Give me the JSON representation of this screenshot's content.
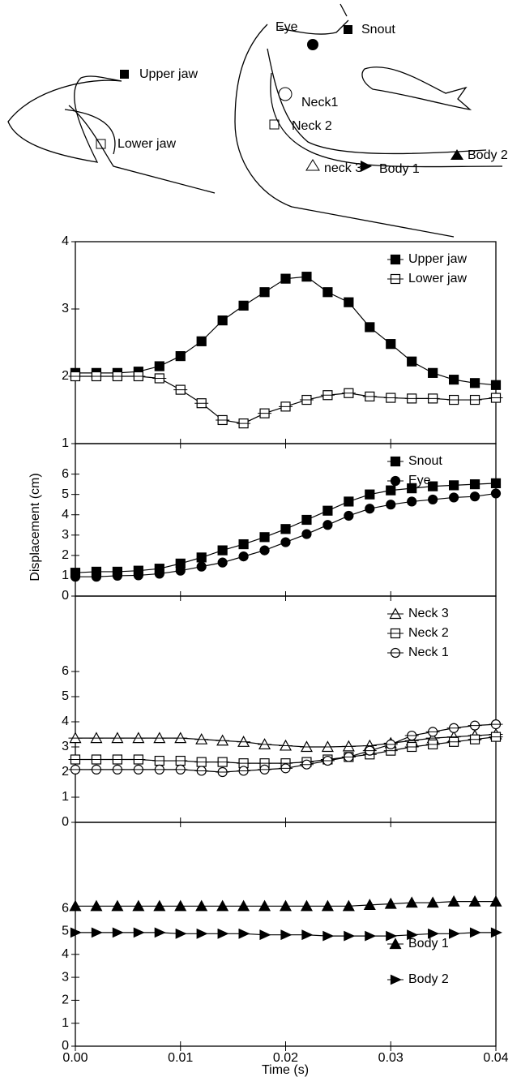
{
  "diagram_labels": [
    "Eye",
    "Snout",
    "Upper jaw",
    "Neck1",
    "Neck 2",
    "Lower jaw",
    "neck 3",
    "Body 1",
    "Body 2"
  ],
  "chart_data": [
    {
      "type": "line",
      "x": [
        0,
        0.002,
        0.004,
        0.006,
        0.008,
        0.01,
        0.012,
        0.014,
        0.016,
        0.018,
        0.02,
        0.022,
        0.024,
        0.026,
        0.028,
        0.03,
        0.032,
        0.034,
        0.036,
        0.038,
        0.04
      ],
      "xlim": [
        0,
        0.04
      ],
      "ylim": [
        1,
        4
      ],
      "yticks": [
        1,
        2,
        3,
        4
      ],
      "legend": "upper right",
      "series": [
        {
          "name": "Upper jaw",
          "color": "#000000",
          "marker": "square-filled",
          "values": [
            2.05,
            2.05,
            2.05,
            2.07,
            2.15,
            2.3,
            2.52,
            2.83,
            3.05,
            3.25,
            3.45,
            3.48,
            3.25,
            3.1,
            2.73,
            2.48,
            2.22,
            2.05,
            1.95,
            1.9,
            1.87
          ]
        },
        {
          "name": "Lower jaw",
          "color": "#000000",
          "marker": "square-open",
          "values": [
            2.0,
            2.0,
            2.0,
            2.0,
            1.97,
            1.8,
            1.6,
            1.35,
            1.3,
            1.45,
            1.55,
            1.65,
            1.72,
            1.75,
            1.7,
            1.68,
            1.67,
            1.67,
            1.65,
            1.65,
            1.68
          ]
        }
      ]
    },
    {
      "type": "line",
      "x": [
        0,
        0.002,
        0.004,
        0.006,
        0.008,
        0.01,
        0.012,
        0.014,
        0.016,
        0.018,
        0.02,
        0.022,
        0.024,
        0.026,
        0.028,
        0.03,
        0.032,
        0.034,
        0.036,
        0.038,
        0.04
      ],
      "xlim": [
        0,
        0.04
      ],
      "ylim": [
        0,
        7.5
      ],
      "yticks": [
        0,
        1,
        2,
        3,
        4,
        5,
        6
      ],
      "legend": "upper right",
      "ylabel": "Displacement (cm)",
      "series": [
        {
          "name": "Snout",
          "color": "#000000",
          "marker": "square-filled",
          "values": [
            1.15,
            1.2,
            1.2,
            1.25,
            1.35,
            1.6,
            1.9,
            2.25,
            2.55,
            2.9,
            3.3,
            3.75,
            4.2,
            4.65,
            5.0,
            5.2,
            5.3,
            5.4,
            5.45,
            5.5,
            5.55
          ]
        },
        {
          "name": "Eye",
          "color": "#000000",
          "marker": "circle-filled",
          "values": [
            0.95,
            0.95,
            1.0,
            1.02,
            1.1,
            1.25,
            1.45,
            1.65,
            1.95,
            2.25,
            2.65,
            3.05,
            3.5,
            3.95,
            4.3,
            4.5,
            4.65,
            4.75,
            4.85,
            4.9,
            5.05
          ]
        }
      ]
    },
    {
      "type": "line",
      "x": [
        0,
        0.002,
        0.004,
        0.006,
        0.008,
        0.01,
        0.012,
        0.014,
        0.016,
        0.018,
        0.02,
        0.022,
        0.024,
        0.026,
        0.028,
        0.03,
        0.032,
        0.034,
        0.036,
        0.038,
        0.04
      ],
      "xlim": [
        0,
        0.04
      ],
      "ylim": [
        0,
        9
      ],
      "yticks": [
        0,
        1,
        2,
        3,
        4,
        5,
        6
      ],
      "legend": "upper right",
      "series": [
        {
          "name": "Neck 3",
          "color": "#000000",
          "marker": "triangle-open",
          "values": [
            3.35,
            3.35,
            3.35,
            3.35,
            3.35,
            3.35,
            3.3,
            3.25,
            3.2,
            3.1,
            3.05,
            3.0,
            3.0,
            3.02,
            3.05,
            3.15,
            3.25,
            3.35,
            3.4,
            3.45,
            3.5
          ]
        },
        {
          "name": "Neck 2",
          "color": "#000000",
          "marker": "square-open",
          "values": [
            2.5,
            2.5,
            2.5,
            2.5,
            2.45,
            2.45,
            2.4,
            2.4,
            2.35,
            2.35,
            2.35,
            2.4,
            2.5,
            2.6,
            2.7,
            2.85,
            3.0,
            3.1,
            3.2,
            3.3,
            3.4
          ]
        },
        {
          "name": "Neck 1",
          "color": "#000000",
          "marker": "circle-open",
          "values": [
            2.1,
            2.1,
            2.1,
            2.1,
            2.1,
            2.1,
            2.05,
            2.0,
            2.05,
            2.1,
            2.15,
            2.3,
            2.45,
            2.6,
            2.85,
            3.1,
            3.45,
            3.6,
            3.75,
            3.85,
            3.9
          ]
        }
      ]
    },
    {
      "type": "line",
      "x": [
        0,
        0.002,
        0.004,
        0.006,
        0.008,
        0.01,
        0.012,
        0.014,
        0.016,
        0.018,
        0.02,
        0.022,
        0.024,
        0.026,
        0.028,
        0.03,
        0.032,
        0.034,
        0.036,
        0.038,
        0.04
      ],
      "xlim": [
        0,
        0.04
      ],
      "ylim": [
        0,
        9.75
      ],
      "yticks": [
        0,
        1,
        2,
        3,
        4,
        5,
        6
      ],
      "legend": "lower right",
      "xticks": [
        {
          "value": 0,
          "label": "0.00"
        },
        0.01,
        0.02,
        0.03,
        0.04
      ],
      "xlabel": "Time (s)",
      "series": [
        {
          "name": "Body 1",
          "color": "#000000",
          "marker": "triangle-filled",
          "values": [
            6.1,
            6.1,
            6.1,
            6.1,
            6.1,
            6.1,
            6.1,
            6.1,
            6.1,
            6.1,
            6.1,
            6.1,
            6.1,
            6.1,
            6.15,
            6.2,
            6.25,
            6.25,
            6.3,
            6.3,
            6.3
          ]
        },
        {
          "name": "Body 2",
          "color": "#000000",
          "marker": "right-filled",
          "values": [
            4.95,
            4.95,
            4.95,
            4.95,
            4.95,
            4.9,
            4.9,
            4.9,
            4.9,
            4.85,
            4.85,
            4.85,
            4.8,
            4.8,
            4.8,
            4.8,
            4.85,
            4.9,
            4.9,
            4.95,
            4.95
          ]
        }
      ]
    }
  ]
}
